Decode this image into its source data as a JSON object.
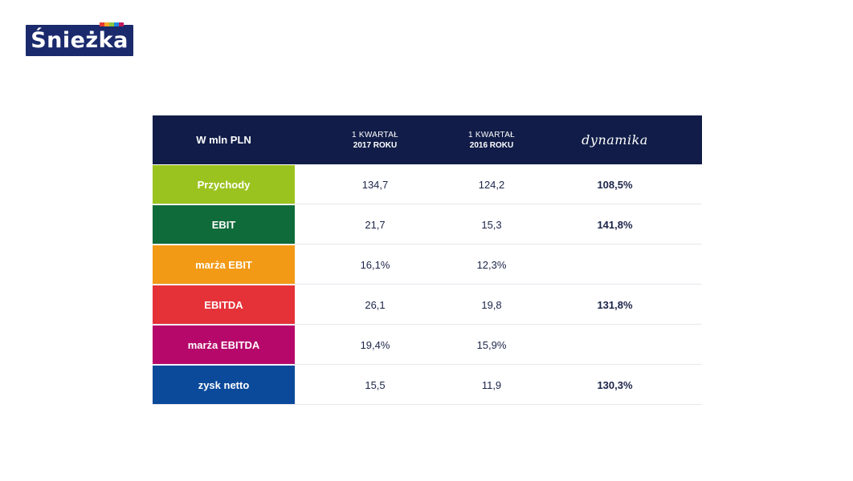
{
  "logo": {
    "text": "Śnieżka",
    "stripe_colors": [
      "#e53935",
      "#f5a623",
      "#8dc63f",
      "#1e88e5",
      "#c2185b"
    ]
  },
  "table": {
    "header": {
      "label": "W  mln PLN",
      "col1_line1": "1 KWARTAŁ",
      "col1_line2": "2017 ROKU",
      "col2_line1": "1 KWARTAŁ",
      "col2_line2": "2016 ROKU",
      "col3": "dynamika"
    },
    "rows": [
      {
        "label": "Przychody",
        "color": "#9bc31f",
        "v2017": "134,7",
        "v2016": "124,2",
        "dyn": "108,5%"
      },
      {
        "label": "EBIT",
        "color": "#0f6b3a",
        "v2017": "21,7",
        "v2016": "15,3",
        "dyn": "141,8%"
      },
      {
        "label": "marża EBIT",
        "color": "#f29a16",
        "v2017": "16,1%",
        "v2016": "12,3%",
        "dyn": ""
      },
      {
        "label": "EBITDA",
        "color": "#e53238",
        "v2017": "26,1",
        "v2016": "19,8",
        "dyn": "131,8%"
      },
      {
        "label": "marża EBITDA",
        "color": "#b5086a",
        "v2017": "19,4%",
        "v2016": "15,9%",
        "dyn": ""
      },
      {
        "label": "zysk netto",
        "color": "#0b4a9a",
        "v2017": "15,5",
        "v2016": "11,9",
        "dyn": "130,3%"
      }
    ]
  }
}
